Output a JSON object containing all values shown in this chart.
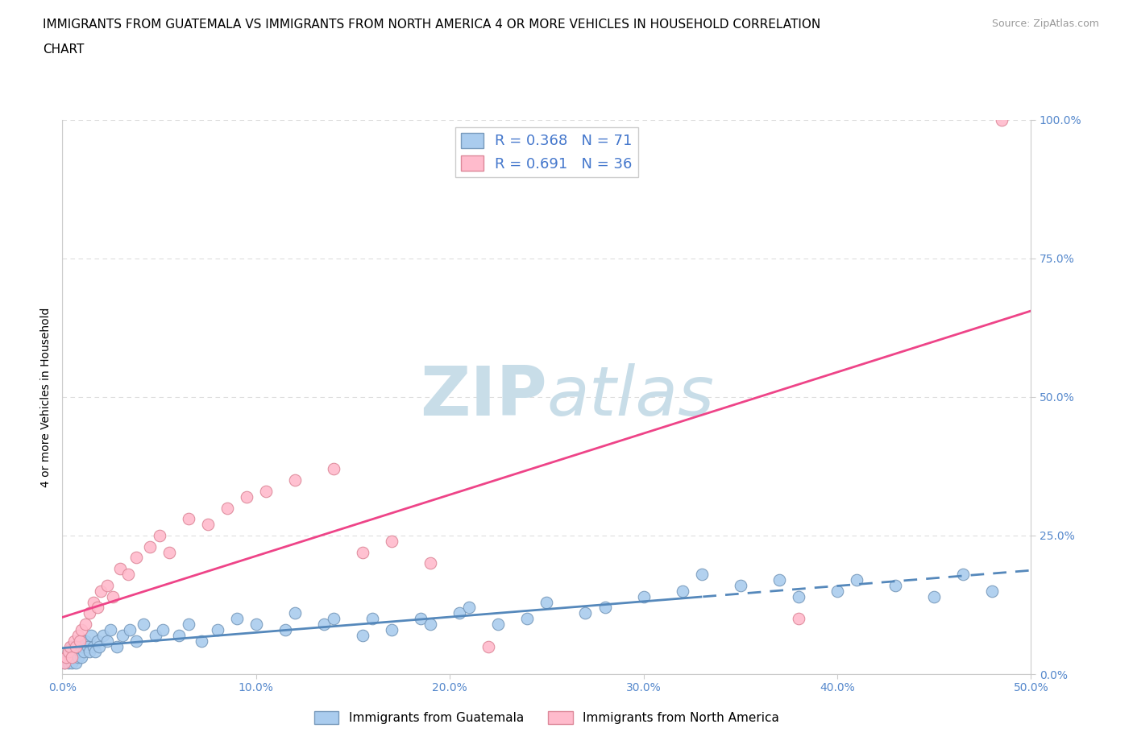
{
  "title_line1": "IMMIGRANTS FROM GUATEMALA VS IMMIGRANTS FROM NORTH AMERICA 4 OR MORE VEHICLES IN HOUSEHOLD CORRELATION",
  "title_line2": "CHART",
  "source": "Source: ZipAtlas.com",
  "ylabel": "4 or more Vehicles in Household",
  "xlim": [
    0,
    50
  ],
  "ylim": [
    0,
    100
  ],
  "xticks": [
    0,
    10,
    20,
    30,
    40,
    50
  ],
  "yticks": [
    0,
    25,
    50,
    75,
    100
  ],
  "xtick_labels": [
    "0.0%",
    "10.0%",
    "20.0%",
    "30.0%",
    "40.0%",
    "50.0%"
  ],
  "ytick_labels": [
    "0.0%",
    "25.0%",
    "50.0%",
    "75.0%",
    "100.0%"
  ],
  "guatemala": {
    "name": "Immigrants from Guatemala",
    "R": 0.368,
    "N": 71,
    "face_color": "#aaccee",
    "edge_color": "#7799bb",
    "trend_color": "#5588bb",
    "dashed_x_start": 33,
    "points_x": [
      0.1,
      0.2,
      0.3,
      0.3,
      0.4,
      0.4,
      0.5,
      0.5,
      0.6,
      0.6,
      0.7,
      0.7,
      0.8,
      0.8,
      0.9,
      0.9,
      1.0,
      1.0,
      1.1,
      1.2,
      1.3,
      1.4,
      1.5,
      1.6,
      1.7,
      1.8,
      1.9,
      2.1,
      2.3,
      2.5,
      2.8,
      3.1,
      3.5,
      3.8,
      4.2,
      4.8,
      5.2,
      6.0,
      6.5,
      7.2,
      8.0,
      9.0,
      10.0,
      11.5,
      12.0,
      13.5,
      14.0,
      15.5,
      16.0,
      17.0,
      18.5,
      19.0,
      20.5,
      21.0,
      22.5,
      24.0,
      25.0,
      27.0,
      28.0,
      30.0,
      32.0,
      33.0,
      35.0,
      37.0,
      38.0,
      40.0,
      41.0,
      43.0,
      45.0,
      46.5,
      48.0
    ],
    "points_y": [
      2,
      3,
      2,
      4,
      3,
      4,
      2,
      5,
      3,
      5,
      2,
      4,
      3,
      5,
      4,
      6,
      3,
      5,
      4,
      6,
      5,
      4,
      7,
      5,
      4,
      6,
      5,
      7,
      6,
      8,
      5,
      7,
      8,
      6,
      9,
      7,
      8,
      7,
      9,
      6,
      8,
      10,
      9,
      8,
      11,
      9,
      10,
      7,
      10,
      8,
      10,
      9,
      11,
      12,
      9,
      10,
      13,
      11,
      12,
      14,
      15,
      18,
      16,
      17,
      14,
      15,
      17,
      16,
      14,
      18,
      15
    ]
  },
  "north_america": {
    "name": "Immigrants from North America",
    "R": 0.691,
    "N": 36,
    "face_color": "#ffbbcc",
    "edge_color": "#dd8899",
    "trend_color": "#ee4488",
    "points_x": [
      0.1,
      0.2,
      0.3,
      0.4,
      0.5,
      0.6,
      0.7,
      0.8,
      0.9,
      1.0,
      1.2,
      1.4,
      1.6,
      1.8,
      2.0,
      2.3,
      2.6,
      3.0,
      3.4,
      3.8,
      4.5,
      5.0,
      5.5,
      6.5,
      7.5,
      8.5,
      9.5,
      10.5,
      12.0,
      14.0,
      15.5,
      17.0,
      19.0,
      22.0,
      38.0,
      48.5
    ],
    "points_y": [
      2,
      3,
      4,
      5,
      3,
      6,
      5,
      7,
      6,
      8,
      9,
      11,
      13,
      12,
      15,
      16,
      14,
      19,
      18,
      21,
      23,
      25,
      22,
      28,
      27,
      30,
      32,
      33,
      35,
      37,
      22,
      24,
      20,
      5,
      10,
      100
    ]
  },
  "watermark_zip": "ZIP",
  "watermark_atlas": "atlas",
  "watermark_color": "#c8dde8",
  "background_color": "#ffffff",
  "grid_color": "#dddddd",
  "title_fontsize": 11,
  "tick_fontsize": 10,
  "legend_color": "#4477cc",
  "tick_color": "#5588cc"
}
